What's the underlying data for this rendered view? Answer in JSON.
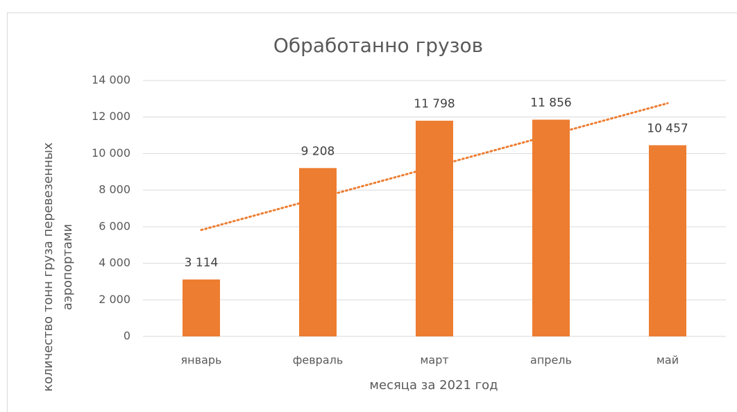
{
  "chart_data": {
    "type": "bar",
    "title": "Обработанно грузов",
    "x_label": "месяца за 2021 год",
    "y_label": "количество тонн груза перевезенных аэропортами",
    "categories": [
      "январь",
      "февраль",
      "март",
      "апрель",
      "май"
    ],
    "values": [
      3114,
      9208,
      11798,
      11856,
      10457
    ],
    "value_labels": [
      "3 114",
      "9 208",
      "11 798",
      "11 856",
      "10 457"
    ],
    "color": "#ed7d31",
    "trendline": {
      "type": "linear",
      "color": "#ed7d31"
    },
    "ylim": [
      0,
      14000
    ],
    "yticks": [
      0,
      {
        "value": 2000,
        "label": "2 000"
      },
      {
        "value": 4000,
        "label": "4 000"
      },
      {
        "value": 6000,
        "label": "6 000"
      },
      {
        "value": 8000,
        "label": "8 000"
      },
      {
        "value": 10000,
        "label": "10 000"
      },
      {
        "value": 12000,
        "label": "12 000"
      },
      {
        "value": 14000,
        "label": "14 000"
      }
    ],
    "grid": true
  }
}
